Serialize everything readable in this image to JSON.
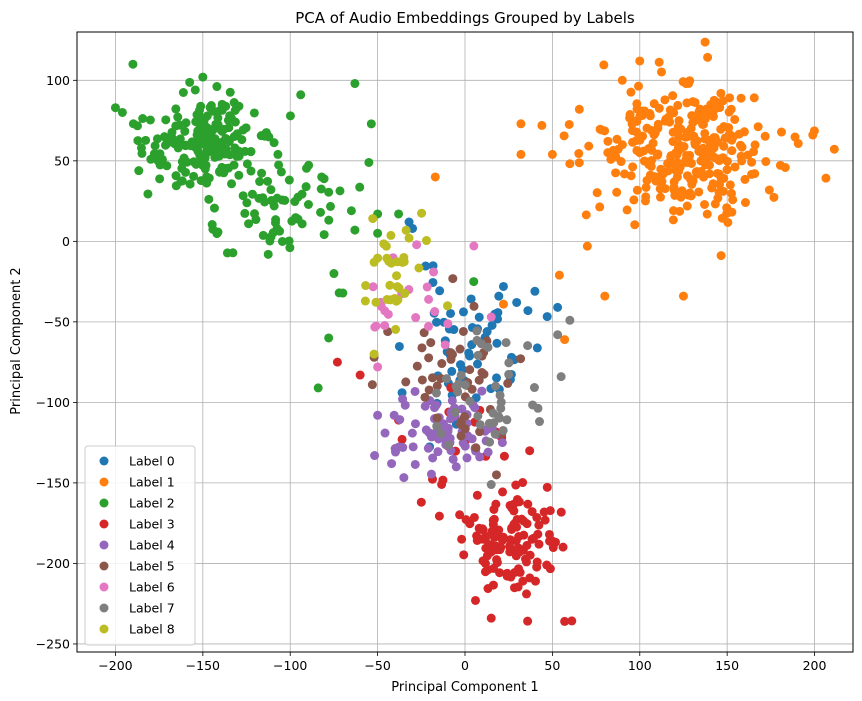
{
  "chart_data": {
    "type": "scatter",
    "title": "PCA of Audio Embeddings Grouped by Labels",
    "xlabel": "Principal Component 1",
    "ylabel": "Principal Component 2",
    "xlim": [
      -222,
      222
    ],
    "ylim": [
      -255,
      130
    ],
    "xticks": [
      -200,
      -150,
      -100,
      -50,
      0,
      50,
      100,
      150,
      200
    ],
    "yticks": [
      -250,
      -200,
      -150,
      -100,
      -50,
      0,
      50,
      100
    ],
    "grid": true,
    "legend": "lower-left",
    "series": [
      {
        "name": "Label 0",
        "color": "#1f77b4",
        "clusters": [
          {
            "center": [
              5,
              -65
            ],
            "spread": [
              18,
              22
            ],
            "count": 55,
            "seed": 11
          }
        ],
        "points": [
          [
            -32,
            12
          ],
          [
            -30,
            8
          ],
          [
            36,
            -43
          ],
          [
            53,
            -41
          ],
          [
            40,
            -31
          ],
          [
            22,
            -28
          ],
          [
            -36,
            -94
          ]
        ]
      },
      {
        "name": "Label 1",
        "color": "#ff7f0e",
        "clusters": [
          {
            "center": [
              125,
              58
            ],
            "spread": [
              26,
              20
            ],
            "count": 300,
            "seed": 22
          }
        ],
        "points": [
          [
            -17,
            40
          ],
          [
            32,
            73
          ],
          [
            32,
            54
          ],
          [
            50,
            54
          ],
          [
            54,
            -21
          ],
          [
            57,
            -61
          ],
          [
            22,
            -39
          ],
          [
            100,
            112
          ],
          [
            199,
            66
          ],
          [
            125,
            -34
          ],
          [
            80,
            -34
          ],
          [
            90,
            100
          ],
          [
            70,
            -3
          ]
        ]
      },
      {
        "name": "Label 2",
        "color": "#2ca02c",
        "clusters": [
          {
            "center": [
              -150,
              62
            ],
            "spread": [
              18,
              14
            ],
            "count": 190,
            "seed": 33
          },
          {
            "center": [
              -110,
              25
            ],
            "spread": [
              22,
              20
            ],
            "count": 70,
            "seed": 34
          }
        ],
        "points": [
          [
            -200,
            83
          ],
          [
            -190,
            110
          ],
          [
            -150,
            102
          ],
          [
            -63,
            98
          ],
          [
            -94,
            91
          ],
          [
            -82,
            40
          ],
          [
            -55,
            49
          ],
          [
            -50,
            17
          ],
          [
            -38,
            17
          ],
          [
            -75,
            -20
          ],
          [
            -72,
            -32
          ],
          [
            -78,
            -60
          ],
          [
            -84,
            -91
          ],
          [
            5,
            -25
          ],
          [
            -65,
            19
          ],
          [
            -63,
            7
          ],
          [
            -50,
            5
          ]
        ]
      },
      {
        "name": "Label 3",
        "color": "#d62728",
        "clusters": [
          {
            "center": [
              25,
              -188
            ],
            "spread": [
              14,
              15
            ],
            "count": 120,
            "seed": 44
          },
          {
            "center": [
              0,
              -140
            ],
            "spread": [
              15,
              20
            ],
            "count": 22,
            "seed": 45
          }
        ],
        "points": [
          [
            -73,
            -75
          ],
          [
            -60,
            -83
          ],
          [
            -25,
            -162
          ],
          [
            57,
            -236
          ],
          [
            15,
            -234
          ],
          [
            6,
            -223
          ],
          [
            -38,
            -111
          ],
          [
            -36,
            -123
          ],
          [
            37,
            -130
          ]
        ]
      },
      {
        "name": "Label 4",
        "color": "#9467bd",
        "clusters": [
          {
            "center": [
              -15,
              -118
            ],
            "spread": [
              15,
              12
            ],
            "count": 75,
            "seed": 55
          }
        ],
        "points": [
          [
            -50,
            -108
          ],
          [
            -42,
            -138
          ],
          [
            -5,
            -140
          ]
        ]
      },
      {
        "name": "Label 5",
        "color": "#8c564b",
        "clusters": [
          {
            "center": [
              -5,
              -85
            ],
            "spread": [
              15,
              18
            ],
            "count": 45,
            "seed": 66
          }
        ],
        "points": [
          [
            -53,
            -89
          ],
          [
            -52,
            -72
          ],
          [
            18,
            -145
          ]
        ]
      },
      {
        "name": "Label 6",
        "color": "#e377c2",
        "clusters": [
          {
            "center": [
              -35,
              -30
            ],
            "spread": [
              14,
              16
            ],
            "count": 20,
            "seed": 77
          }
        ],
        "points": [
          [
            -18,
            -19
          ],
          [
            15,
            -47
          ],
          [
            -50,
            -78
          ]
        ]
      },
      {
        "name": "Label 7",
        "color": "#7f7f7f",
        "clusters": [
          {
            "center": [
              12,
              -95
            ],
            "spread": [
              14,
              20
            ],
            "count": 40,
            "seed": 88
          }
        ],
        "points": [
          [
            60,
            -49
          ],
          [
            53,
            -58
          ],
          [
            55,
            -84
          ],
          [
            15,
            -151
          ]
        ]
      },
      {
        "name": "Label 8",
        "color": "#bcbd22",
        "clusters": [
          {
            "center": [
              -40,
              -25
            ],
            "spread": [
              10,
              18
            ],
            "count": 28,
            "seed": 99
          }
        ],
        "points": [
          [
            -45,
            -3
          ],
          [
            -52,
            -13
          ],
          [
            -52,
            -70
          ],
          [
            -10,
            -40
          ],
          [
            -32,
            2
          ],
          [
            -35,
            -10
          ]
        ]
      }
    ]
  }
}
